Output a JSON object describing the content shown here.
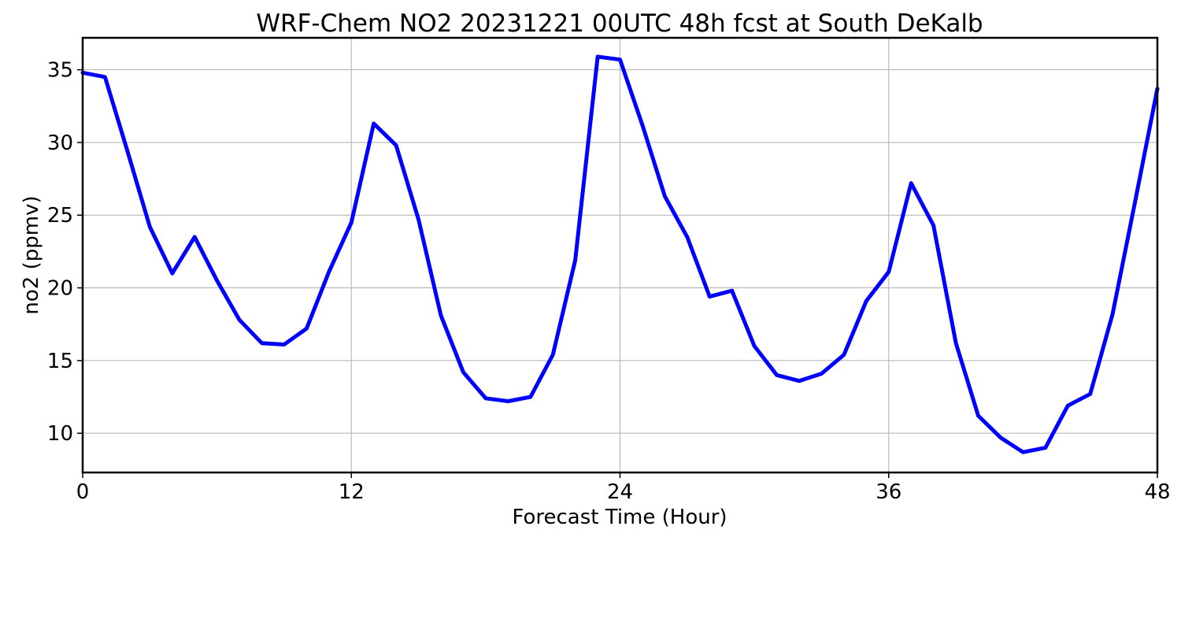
{
  "chart_data": {
    "type": "line",
    "title": "WRF-Chem NO2  20231221 00UTC 48h fcst at South DeKalb",
    "xlabel": "Forecast Time (Hour)",
    "ylabel": "no2  (ppmv)",
    "xlim": [
      0,
      48
    ],
    "ylim": [
      7.3,
      37.2
    ],
    "xticks": [
      "0",
      "12",
      "24",
      "36",
      "48"
    ],
    "yticks": [
      "10",
      "15",
      "20",
      "25",
      "30",
      "35"
    ],
    "grid": true,
    "line_color": "#0000ff",
    "series": [
      {
        "x": [
          0,
          1,
          2,
          3,
          4,
          5,
          6,
          7,
          8,
          9,
          10,
          11,
          12,
          13,
          14,
          15,
          16,
          17,
          18,
          19,
          20,
          21,
          22,
          23,
          24,
          25,
          26,
          27,
          28,
          29,
          30,
          31,
          32,
          33,
          34,
          35,
          36,
          37,
          38,
          39,
          40,
          41,
          42,
          43,
          44,
          45,
          46,
          47,
          48
        ],
        "values": [
          34.8,
          34.5,
          29.4,
          24.2,
          21.0,
          23.5,
          20.5,
          17.8,
          16.2,
          16.1,
          17.2,
          21.1,
          24.5,
          31.3,
          29.8,
          24.7,
          18.1,
          14.2,
          12.4,
          12.2,
          12.5,
          15.4,
          21.9,
          35.9,
          35.7,
          31.2,
          26.3,
          23.5,
          19.4,
          19.8,
          16.0,
          14.0,
          13.6,
          14.1,
          15.4,
          19.1,
          21.1,
          27.2,
          24.3,
          16.2,
          11.2,
          9.7,
          8.7,
          9.0,
          11.9,
          12.7,
          18.2,
          25.9,
          33.7
        ]
      }
    ]
  }
}
